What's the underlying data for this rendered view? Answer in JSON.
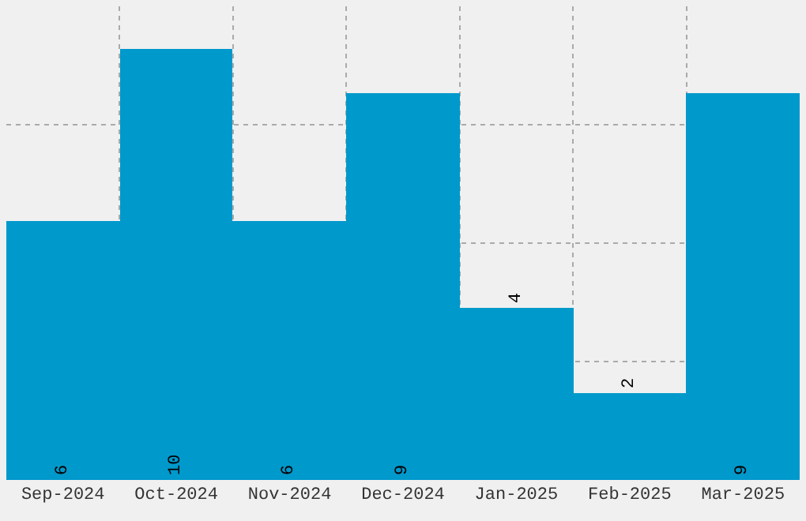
{
  "chart_data": {
    "type": "bar",
    "categories": [
      "Sep-2024",
      "Oct-2024",
      "Nov-2024",
      "Dec-2024",
      "Jan-2025",
      "Feb-2025",
      "Mar-2025"
    ],
    "values": [
      6,
      10,
      6,
      9,
      4,
      2,
      9
    ],
    "color": "#0099cc",
    "ylim": [
      0,
      11
    ],
    "yticks": [
      {
        "value": 2.75,
        "label": null
      },
      {
        "value": 5.5,
        "label": null
      },
      {
        "value": 8.25,
        "label": null
      }
    ],
    "tick_labels": "x",
    "grid": true,
    "data_labels": true,
    "legend": false
  }
}
